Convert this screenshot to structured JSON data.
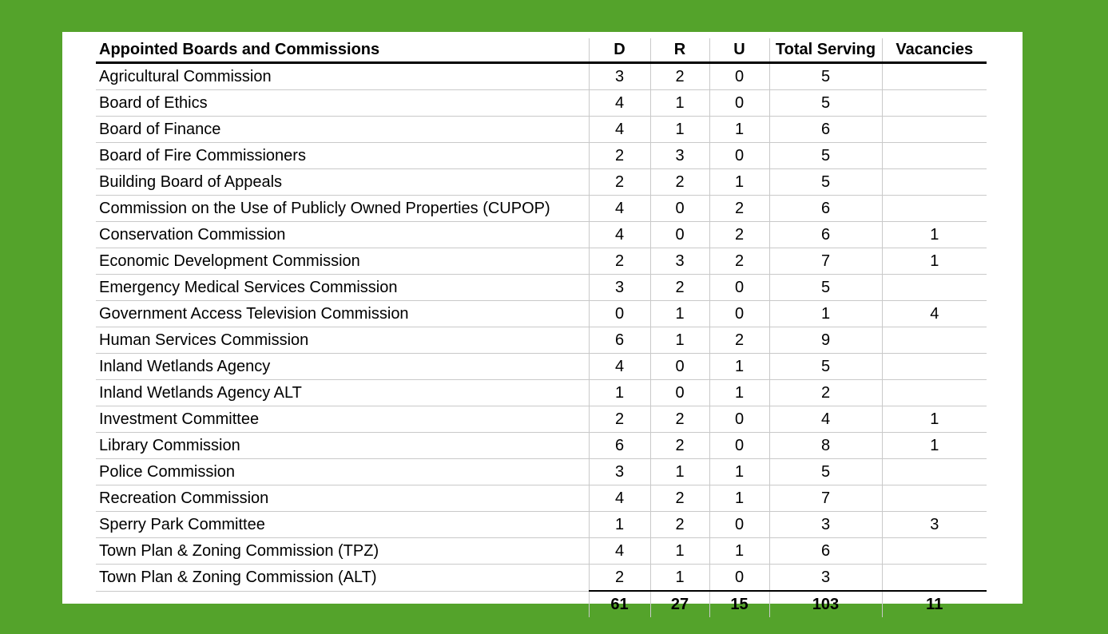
{
  "colors": {
    "background": "#54a32b",
    "panel": "#ffffff",
    "gridline": "#c9c9c9",
    "heavy_rule": "#000000",
    "text": "#000000"
  },
  "table": {
    "header": {
      "name_col": "Appointed Boards and Commissions",
      "columns": [
        "D",
        "R",
        "U",
        "Total Serving",
        "Vacancies"
      ]
    },
    "rows": [
      {
        "name": "Agricultural Commission",
        "values": [
          "3",
          "2",
          "0",
          "5",
          ""
        ]
      },
      {
        "name": "Board of Ethics",
        "values": [
          "4",
          "1",
          "0",
          "5",
          ""
        ]
      },
      {
        "name": "Board of Finance",
        "values": [
          "4",
          "1",
          "1",
          "6",
          ""
        ]
      },
      {
        "name": "Board of Fire Commissioners",
        "values": [
          "2",
          "3",
          "0",
          "5",
          ""
        ]
      },
      {
        "name": "Building Board of Appeals",
        "values": [
          "2",
          "2",
          "1",
          "5",
          ""
        ]
      },
      {
        "name": "Commission on the Use of Publicly Owned Properties (CUPOP)",
        "values": [
          "4",
          "0",
          "2",
          "6",
          ""
        ]
      },
      {
        "name": "Conservation Commission",
        "values": [
          "4",
          "0",
          "2",
          "6",
          "1"
        ]
      },
      {
        "name": "Economic Development Commission",
        "values": [
          "2",
          "3",
          "2",
          "7",
          "1"
        ]
      },
      {
        "name": "Emergency Medical Services Commission",
        "values": [
          "3",
          "2",
          "0",
          "5",
          ""
        ]
      },
      {
        "name": "Government Access Television Commission",
        "values": [
          "0",
          "1",
          "0",
          "1",
          "4"
        ]
      },
      {
        "name": "Human Services Commission",
        "values": [
          "6",
          "1",
          "2",
          "9",
          ""
        ]
      },
      {
        "name": "Inland Wetlands Agency",
        "values": [
          "4",
          "0",
          "1",
          "5",
          ""
        ]
      },
      {
        "name": "Inland Wetlands Agency ALT",
        "values": [
          "1",
          "0",
          "1",
          "2",
          ""
        ]
      },
      {
        "name": "Investment Committee",
        "values": [
          "2",
          "2",
          "0",
          "4",
          "1"
        ]
      },
      {
        "name": "Library Commission",
        "values": [
          "6",
          "2",
          "0",
          "8",
          "1"
        ]
      },
      {
        "name": "Police Commission",
        "values": [
          "3",
          "1",
          "1",
          "5",
          ""
        ]
      },
      {
        "name": "Recreation Commission",
        "values": [
          "4",
          "2",
          "1",
          "7",
          ""
        ]
      },
      {
        "name": "Sperry Park Committee",
        "values": [
          "1",
          "2",
          "0",
          "3",
          "3"
        ]
      },
      {
        "name": "Town Plan & Zoning Commission (TPZ)",
        "values": [
          "4",
          "1",
          "1",
          "6",
          ""
        ]
      },
      {
        "name": "Town Plan & Zoning Commission (ALT)",
        "values": [
          "2",
          "1",
          "0",
          "3",
          ""
        ]
      }
    ],
    "totals": {
      "values": [
        "61",
        "27",
        "15",
        "103",
        "11"
      ]
    }
  }
}
